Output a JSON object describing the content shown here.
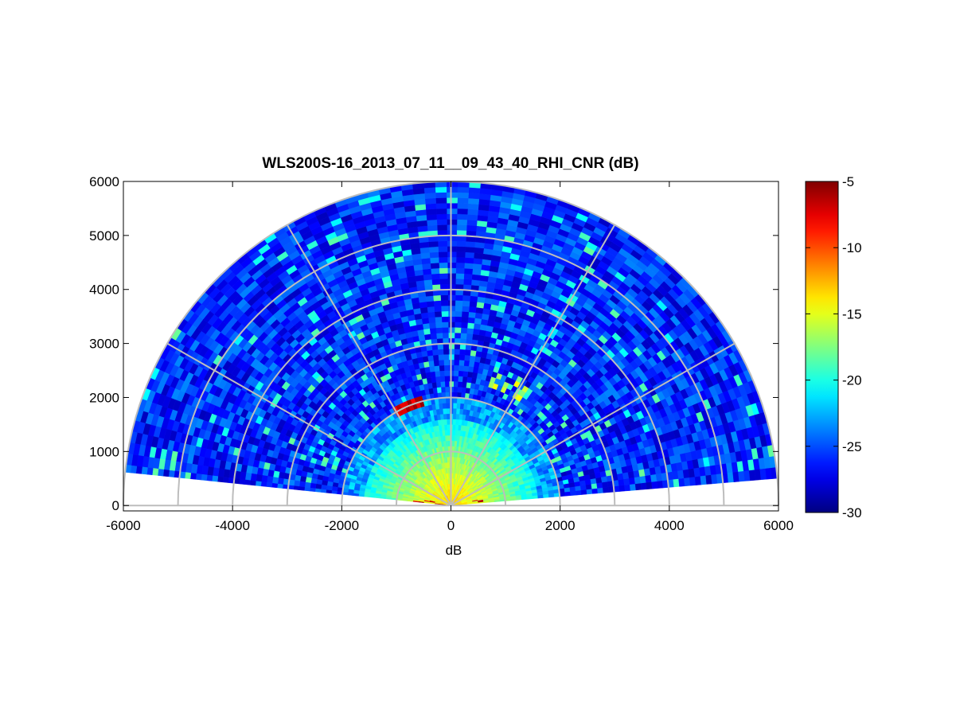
{
  "chart_data": {
    "type": "heatmap",
    "subtype": "polar-rhi-sector",
    "title": "WLS200S-16_2013_07_11__09_43_40_RHI_CNR (dB)",
    "xlabel": "dB",
    "ylabel": "",
    "xlim": [
      -6000,
      6000
    ],
    "ylim": [
      -100,
      6000
    ],
    "xticks": [
      -6000,
      -4000,
      -2000,
      0,
      2000,
      4000,
      6000
    ],
    "xtick_labels": [
      "-6000",
      "-4000",
      "-2000",
      "0",
      "2000",
      "4000",
      "6000"
    ],
    "yticks": [
      0,
      1000,
      2000,
      3000,
      4000,
      5000,
      6000
    ],
    "ytick_labels": [
      "0",
      "1000",
      "2000",
      "3000",
      "4000",
      "5000",
      "6000"
    ],
    "polar_grid": {
      "range_rings": [
        1000,
        2000,
        3000,
        4000,
        5000,
        6000
      ],
      "spokes_deg": [
        0,
        30,
        60,
        90,
        120,
        150,
        180
      ]
    },
    "sector": {
      "elevation_deg": [
        4.8,
        174.1
      ],
      "max_range": 6000,
      "range_gate": 100,
      "angle_step_deg": 2
    },
    "colorbar": {
      "colormap": "jet",
      "clim": [
        -30,
        -5
      ],
      "ticks": [
        -30,
        -25,
        -20,
        -15,
        -10,
        -5
      ],
      "tick_labels": [
        "-30",
        "-25",
        "-20",
        "-15",
        "-10",
        "-5"
      ]
    },
    "features": [
      {
        "name": "near-field return",
        "range": [
          0,
          2000
        ],
        "cnr_db": [
          -18,
          -13
        ]
      },
      {
        "name": "far field background",
        "range": [
          2000,
          6000
        ],
        "cnr_db": [
          -28,
          -24
        ]
      },
      {
        "name": "strong layer",
        "range": 2000,
        "elevation_deg": [
          105,
          120
        ],
        "cnr_db": [
          -7,
          -5
        ]
      },
      {
        "name": "elevated feature",
        "range": 2500,
        "elevation_deg": [
          55,
          72
        ],
        "cnr_db": [
          -22,
          -14
        ]
      },
      {
        "name": "near-ground spots",
        "range": [
          300,
          700
        ],
        "elevation_deg": [
          5,
          170
        ],
        "cnr_db": [
          -8,
          -5
        ]
      }
    ]
  }
}
